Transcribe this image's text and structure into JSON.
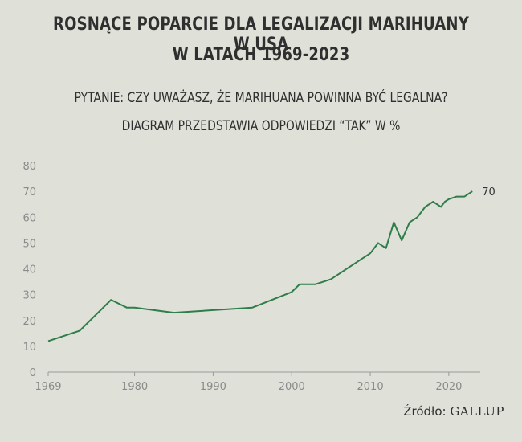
{
  "header": {
    "title_line1": "ROSNĄCE POPARCIE DLA LEGALIZACJI MARIHUANY W USA",
    "title_line2": "W LATACH 1969-2023",
    "subtitle_line1": "PYTANIE: CZY UWAŻASZ, ŻE  MARIHUANA POWINNA BYĆ LEGALNA?",
    "subtitle_line2": "DIAGRAM PRZEDSTAWIA ODPOWIEDZI “TAK” W %"
  },
  "source": {
    "label": "Źródło:",
    "name": "GALLUP"
  },
  "colors": {
    "background": "#dfe1d9",
    "line": "#2e7d4a",
    "axis_text": "#8a8a8a",
    "title_text": "#2f2f2f"
  },
  "chart_data": {
    "type": "line",
    "title": "ROSNĄCE POPARCIE DLA LEGALIZACJI MARIHUANY W USA W LATACH 1969-2023",
    "xlabel": "",
    "ylabel": "",
    "xlim": [
      1969,
      2024
    ],
    "ylim": [
      0,
      80
    ],
    "x_ticks": [
      1969,
      1980,
      1990,
      2000,
      2010,
      2020
    ],
    "y_ticks": [
      0,
      10,
      20,
      30,
      40,
      50,
      60,
      70,
      80
    ],
    "grid": false,
    "end_label": "70",
    "series": [
      {
        "x": [
          1969,
          1973,
          1977,
          1979,
          1980,
          1985,
          1995,
          2000,
          2001,
          2003,
          2005,
          2009,
          2010,
          2011,
          2012,
          2013,
          2014,
          2015,
          2016,
          2017,
          2018,
          2019,
          2019.5,
          2020,
          2021,
          2022,
          2023
        ],
        "values": [
          12,
          16,
          28,
          25,
          25,
          23,
          25,
          31,
          34,
          34,
          36,
          44,
          46,
          50,
          48,
          58,
          51,
          58,
          60,
          64,
          66,
          64,
          66,
          67,
          68,
          68,
          70
        ]
      }
    ]
  }
}
